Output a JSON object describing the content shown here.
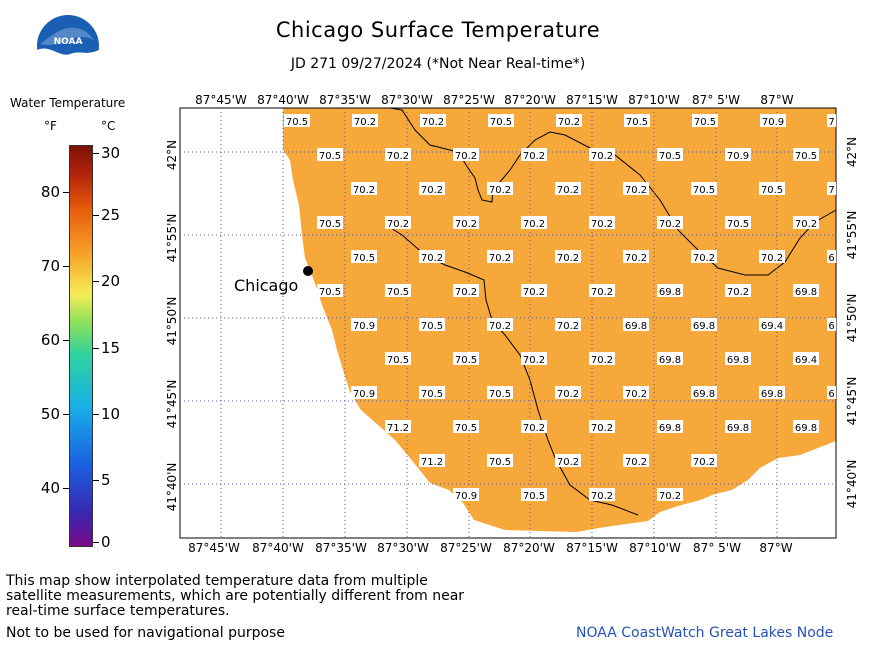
{
  "title": "Chicago Surface Temperature",
  "subtitle": "JD 271 09/27/2024 (*Not Near Real-time*)",
  "logo_text": "NOAA",
  "legend": {
    "title": "Water Temperature",
    "unit_f": "°F",
    "unit_c": "°C",
    "f_ticks": [
      "80",
      "70",
      "60",
      "50",
      "40"
    ],
    "c_ticks": [
      "30",
      "25",
      "20",
      "15",
      "10",
      "5",
      "0"
    ]
  },
  "map": {
    "city_label": "Chicago",
    "lon_labels": [
      "87°45'W",
      "87°40'W",
      "87°35'W",
      "87°30'W",
      "87°25'W",
      "87°20'W",
      "87°15'W",
      "87°10'W",
      "87° 5'W",
      "87°W"
    ],
    "lat_labels": [
      "42°N",
      "41°55'N",
      "41°50'N",
      "41°45'N",
      "41°40'N"
    ],
    "colors": {
      "water": "#f7a83a",
      "land": "#ffffff",
      "grid": "#5a5aa0"
    },
    "temperature_rows": [
      [
        "70.5",
        "70.2",
        "70.2",
        "70.5",
        "70.2",
        "70.5",
        "70.5",
        "70.9",
        "7"
      ],
      [
        "70.5",
        "70.2",
        "70.2",
        "70.2",
        "70.2",
        "70.5",
        "70.9",
        "70.5"
      ],
      [
        "70.2",
        "70.2",
        "70.2",
        "70.2",
        "70.2",
        "70.5",
        "70.5",
        "7"
      ],
      [
        "70.5",
        "70.2",
        "70.2",
        "70.2",
        "70.2",
        "70.2",
        "70.5",
        "70.2"
      ],
      [
        "70.5",
        "70.2",
        "70.2",
        "70.2",
        "70.2",
        "70.2",
        "70.2",
        "6"
      ],
      [
        "70.5",
        "70.5",
        "70.2",
        "70.2",
        "70.2",
        "69.8",
        "70.2",
        "69.8"
      ],
      [
        "70.9",
        "70.5",
        "70.2",
        "70.2",
        "69.8",
        "69.8",
        "69.4",
        "6"
      ],
      [
        "70.5",
        "70.5",
        "70.2",
        "70.2",
        "69.8",
        "69.8",
        "69.4"
      ],
      [
        "70.9",
        "70.5",
        "70.5",
        "70.2",
        "70.2",
        "69.8",
        "69.8",
        "6"
      ],
      [
        "71.2",
        "70.5",
        "70.2",
        "70.2",
        "69.8",
        "69.8",
        "69.8"
      ],
      [
        "71.2",
        "70.5",
        "70.2",
        "70.2",
        "70.2"
      ],
      [
        "70.9",
        "70.5",
        "70.2",
        "70.2"
      ]
    ]
  },
  "footer": {
    "note": "This map show interpolated temperature data from multiple satellite measurements, which are potentially different from near real-time surface temperatures.",
    "nav": "Not to be used for navigational purpose",
    "credit": "NOAA CoastWatch Great Lakes Node"
  }
}
